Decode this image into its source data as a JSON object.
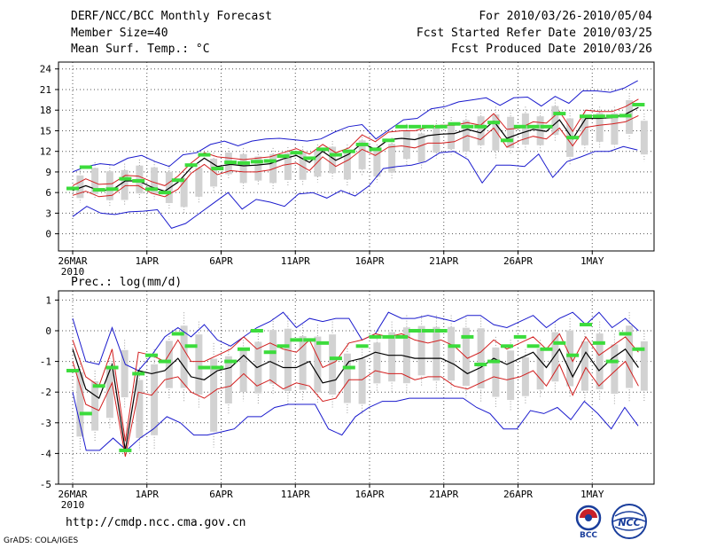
{
  "header": {
    "title": "DERF/NCC/BCC Monthly Forecast",
    "member_size": "Member Size=40",
    "variable": "Mean Surf. Temp.: °C",
    "period": "For 2010/03/26-2010/05/04",
    "refer_date": "Fcst Started Refer Date 2010/03/25",
    "produced_date": "Fcst Produced Date 2010/03/26"
  },
  "footer": {
    "url": "http://cmdp.ncc.cma.gov.cn",
    "credit": "GrADS: COLA/IGES",
    "logo_bcc": "BCC",
    "logo_ncc": "NCC"
  },
  "colors": {
    "max_min": "#1a1acd",
    "spread": "#d21e1e",
    "mean": "#000000",
    "median": "#3cdc3c",
    "boxes": "#d2d2d2",
    "grid": "#555555"
  },
  "chart_data": [
    {
      "type": "box-ensemble",
      "title": "",
      "ylabel": "Mean Surf. Temp.: °C",
      "ylim": [
        -2.5,
        25
      ],
      "yticks": [
        0,
        3,
        6,
        9,
        12,
        15,
        18,
        21,
        24
      ],
      "ytick_labels": [
        "0",
        "3",
        "6",
        "9",
        "12",
        "15",
        "18",
        "21",
        "24"
      ],
      "xticks": [
        0,
        5,
        10,
        15,
        20,
        25,
        30,
        35
      ],
      "xtick_labels": [
        "26MAR",
        "1APR",
        "6APR",
        "11APR",
        "16APR",
        "21APR",
        "26APR",
        "1MAY"
      ],
      "year_label": "2010",
      "days": 40,
      "series": [
        {
          "name": "max",
          "values": [
            9.0,
            9.8,
            10.2,
            10.0,
            11.0,
            11.4,
            10.5,
            9.8,
            11.5,
            11.8,
            13.0,
            13.5,
            12.8,
            13.5,
            13.8,
            13.9,
            13.7,
            13.5,
            13.8,
            14.8,
            15.6,
            15.9,
            13.8,
            15.2,
            16.6,
            16.8,
            18.2,
            18.5,
            19.2,
            19.5,
            19.8,
            18.7,
            19.8,
            19.9,
            18.6,
            20.0,
            19.0,
            20.8,
            20.8,
            20.6,
            21.2,
            22.3,
            20.8
          ]
        },
        {
          "name": "min",
          "values": [
            2.5,
            4.0,
            3.0,
            2.8,
            3.2,
            3.3,
            3.5,
            0.8,
            1.5,
            3.0,
            4.5,
            6.0,
            3.6,
            5.0,
            4.6,
            4.0,
            5.8,
            6.0,
            5.2,
            6.3,
            5.5,
            7.0,
            9.5,
            9.8,
            10.0,
            10.5,
            11.8,
            12.0,
            10.8,
            7.4,
            10.0,
            10.0,
            9.8,
            11.6,
            8.2,
            10.5,
            11.2,
            12.0,
            12.0,
            12.7,
            12.2,
            12.0
          ]
        },
        {
          "name": "upper",
          "values": [
            7.0,
            8.0,
            7.2,
            7.3,
            8.5,
            8.4,
            7.6,
            7.0,
            8.4,
            10.3,
            11.8,
            11.2,
            11.0,
            10.8,
            11.0,
            11.2,
            11.8,
            12.4,
            11.6,
            13.0,
            11.8,
            12.5,
            14.4,
            13.4,
            14.8,
            15.0,
            15.0,
            15.5,
            15.8,
            15.8,
            16.2,
            15.8,
            17.5,
            15.2,
            15.4,
            16.3,
            16.1,
            17.8,
            14.9,
            18.0,
            17.8,
            17.8,
            18.5,
            19.6,
            18.2
          ]
        },
        {
          "name": "lower",
          "values": [
            5.6,
            6.2,
            5.4,
            5.6,
            7.0,
            7.0,
            5.9,
            5.4,
            6.5,
            8.8,
            10.1,
            8.6,
            9.2,
            9.0,
            9.0,
            9.3,
            10.0,
            10.3,
            9.2,
            11.2,
            9.8,
            10.8,
            12.3,
            11.4,
            12.6,
            12.8,
            12.5,
            13.2,
            13.2,
            13.4,
            14.3,
            13.7,
            15.4,
            12.6,
            13.6,
            14.2,
            13.8,
            15.4,
            12.8,
            15.5,
            15.8,
            16.0,
            16.3,
            17.2,
            16.4
          ]
        },
        {
          "name": "mean",
          "values": [
            6.3,
            7.0,
            6.3,
            6.4,
            7.7,
            7.7,
            6.8,
            6.2,
            7.5,
            9.6,
            11.0,
            9.8,
            10.1,
            9.9,
            10.0,
            10.2,
            10.9,
            11.4,
            10.4,
            12.0,
            10.7,
            11.6,
            13.2,
            12.3,
            13.7,
            13.9,
            13.7,
            14.3,
            14.5,
            14.6,
            15.2,
            14.7,
            16.4,
            13.9,
            14.6,
            15.2,
            14.9,
            16.6,
            13.8,
            16.8,
            16.8,
            16.9,
            17.4,
            18.4,
            17.3
          ]
        },
        {
          "name": "median",
          "values": [
            6.6,
            9.7,
            6.4,
            6.5,
            8.0,
            7.7,
            6.5,
            6.0,
            7.8,
            10.0,
            11.5,
            9.5,
            10.4,
            10.3,
            10.5,
            10.6,
            11.3,
            11.8,
            11.0,
            12.3,
            11.5,
            12.0,
            13.0,
            12.3,
            13.6,
            15.6,
            15.6,
            15.6,
            15.6,
            16.0,
            15.6,
            15.6,
            16.2,
            13.6,
            15.6,
            15.6,
            15.6,
            17.5,
            14.0,
            17.1,
            17.1,
            17.1,
            17.2,
            18.8,
            17.6
          ]
        },
        {
          "name": "box_top",
          "values": [
            9.2,
            10.4,
            10.0,
            10.2,
            10.8,
            10.5,
            10.0,
            9.0,
            10.5,
            11.8,
            12.5,
            12.5,
            12.0,
            12.5,
            12.6,
            12.7,
            13.0,
            13.5,
            13.0,
            14.5,
            13.0,
            14.0,
            16.0,
            15.5,
            16.5,
            17.0,
            17.5,
            18.0,
            18.5,
            18.0,
            18.5,
            18.0,
            19.5,
            18.0,
            18.0,
            18.5,
            18.5,
            20.5,
            17.5,
            20.0,
            20.0,
            19.8,
            20.5,
            21.5,
            21.0
          ]
        },
        {
          "name": "box_bottom",
          "values": [
            4.5,
            5.0,
            4.0,
            4.0,
            5.0,
            5.0,
            3.5,
            3.0,
            4.5,
            6.0,
            8.0,
            6.5,
            7.0,
            6.5,
            7.0,
            7.0,
            7.5,
            8.0,
            7.0,
            8.5,
            7.5,
            8.0,
            10.0,
            9.5,
            11.0,
            11.5,
            11.0,
            12.0,
            11.0,
            11.5,
            12.0,
            12.0,
            13.5,
            10.0,
            12.0,
            12.5,
            12.0,
            13.5,
            10.5,
            14.0,
            13.5,
            14.0,
            14.0,
            15.0,
            14.5
          ]
        }
      ]
    },
    {
      "type": "box-ensemble",
      "title": "Prec.: log(mm/d)",
      "ylabel": "Prec.: log(mm/d)",
      "ylim": [
        -5,
        1.3
      ],
      "yticks": [
        -5,
        -4,
        -3,
        -2,
        -1,
        0,
        1
      ],
      "ytick_labels": [
        "-5",
        "-4",
        "-3",
        "-2",
        "-1",
        "0",
        "1"
      ],
      "xticks": [
        0,
        5,
        10,
        15,
        20,
        25,
        30,
        35
      ],
      "xtick_labels": [
        "26MAR",
        "1APR",
        "6APR",
        "11APR",
        "16APR",
        "21APR",
        "26APR",
        "1MAY"
      ],
      "year_label": "2010",
      "days": 40,
      "series": [
        {
          "name": "max",
          "values": [
            0.4,
            -1.0,
            -1.1,
            0.1,
            -1.1,
            -1.3,
            -0.8,
            -0.2,
            0.1,
            -0.2,
            0.2,
            -0.3,
            -0.5,
            -0.2,
            0.1,
            0.3,
            0.6,
            0.1,
            0.4,
            0.3,
            0.4,
            0.4,
            -0.3,
            -0.1,
            0.6,
            0.4,
            0.4,
            0.5,
            0.4,
            0.3,
            0.5,
            0.5,
            0.2,
            0.1,
            0.3,
            0.5,
            0.1,
            0.4,
            0.6,
            0.2,
            0.6,
            0.1,
            0.4,
            0.0,
            0.3
          ]
        },
        {
          "name": "min",
          "values": [
            -2.0,
            -3.9,
            -3.9,
            -3.5,
            -3.9,
            -3.5,
            -3.2,
            -2.8,
            -3.0,
            -3.4,
            -3.4,
            -3.3,
            -3.2,
            -2.8,
            -2.8,
            -2.5,
            -2.4,
            -2.4,
            -2.4,
            -3.2,
            -3.4,
            -2.8,
            -2.5,
            -2.3,
            -2.3,
            -2.2,
            -2.2,
            -2.2,
            -2.2,
            -2.2,
            -2.5,
            -2.7,
            -3.2,
            -3.2,
            -2.6,
            -2.7,
            -2.5,
            -2.9,
            -2.3,
            -2.7,
            -3.2,
            -2.5,
            -3.1,
            -2.5
          ]
        },
        {
          "name": "upper",
          "values": [
            -0.3,
            -1.5,
            -1.8,
            -0.6,
            -3.6,
            -0.7,
            -0.8,
            -1.0,
            -0.3,
            -1.0,
            -1.0,
            -0.8,
            -0.6,
            -0.2,
            -0.6,
            -0.4,
            -0.6,
            -0.7,
            -0.3,
            -1.2,
            -1.0,
            -0.4,
            -0.3,
            -0.1,
            -0.2,
            -0.1,
            -0.3,
            -0.4,
            -0.3,
            -0.5,
            -0.9,
            -0.7,
            -0.3,
            -0.6,
            -0.4,
            -0.2,
            -0.6,
            -0.1,
            -1.0,
            -0.2,
            -0.8,
            -0.5,
            -0.2,
            -0.7,
            -0.3
          ]
        },
        {
          "name": "lower",
          "values": [
            -1.0,
            -2.4,
            -2.6,
            -1.7,
            -4.1,
            -2.0,
            -2.1,
            -1.6,
            -1.5,
            -2.0,
            -2.2,
            -1.9,
            -1.8,
            -1.4,
            -1.8,
            -1.6,
            -1.9,
            -1.7,
            -1.8,
            -2.3,
            -2.2,
            -1.6,
            -1.6,
            -1.3,
            -1.4,
            -1.4,
            -1.6,
            -1.5,
            -1.5,
            -1.8,
            -1.9,
            -1.7,
            -1.5,
            -1.6,
            -1.5,
            -1.3,
            -1.8,
            -1.1,
            -2.1,
            -1.2,
            -1.8,
            -1.4,
            -1.0,
            -1.8,
            -1.3
          ]
        },
        {
          "name": "mean",
          "values": [
            -0.6,
            -1.9,
            -2.2,
            -1.1,
            -3.9,
            -1.3,
            -1.4,
            -1.3,
            -0.9,
            -1.5,
            -1.6,
            -1.3,
            -1.2,
            -0.8,
            -1.2,
            -1.0,
            -1.2,
            -1.2,
            -1.0,
            -1.7,
            -1.6,
            -1.0,
            -0.9,
            -0.7,
            -0.8,
            -0.8,
            -0.9,
            -0.9,
            -0.9,
            -1.1,
            -1.4,
            -1.2,
            -0.9,
            -1.1,
            -0.9,
            -0.7,
            -1.2,
            -0.6,
            -1.5,
            -0.7,
            -1.3,
            -0.9,
            -0.6,
            -1.2,
            -0.8
          ]
        },
        {
          "name": "median",
          "values": [
            -1.3,
            -2.7,
            -1.8,
            -1.2,
            -3.9,
            -1.4,
            -0.8,
            -1.0,
            -0.1,
            -0.5,
            -1.2,
            -1.2,
            -1.0,
            -0.6,
            -0.0,
            -0.7,
            -0.5,
            -0.3,
            -0.3,
            -0.4,
            -0.9,
            -1.2,
            -0.5,
            -0.2,
            -0.2,
            -0.2,
            -0.0,
            -0.0,
            -0.0,
            -0.5,
            -0.2,
            -1.1,
            -1.0,
            -0.5,
            -0.2,
            -0.5,
            -0.6,
            -0.4,
            -0.8,
            0.2,
            -0.4,
            -1.0,
            -0.1,
            -0.6,
            -0.2
          ]
        },
        {
          "name": "box_top",
          "values": [
            -0.9,
            -1.3,
            -0.8,
            -0.3,
            -1.2,
            -0.6,
            0.0,
            0.6,
            0.3,
            -0.4,
            -0.5,
            -0.3,
            0.0,
            0.4,
            0.5,
            0.2,
            0.2,
            0.3,
            -0.4,
            -0.6,
            -0.1,
            0.3,
            0.5,
            0.5,
            0.5,
            0.5,
            0.5,
            0.5,
            -0.2,
            -0.3,
            -0.6,
            -0.3,
            0.3,
            0.4,
            0.0,
            0.3,
            -0.1,
            0.6,
            0.0,
            0.4,
            -0.3,
            -0.2,
            -0.2
          ]
        },
        {
          "name": "box_bottom",
          "values": [
            -3.9,
            -3.6,
            -3.2,
            -2.5,
            -3.9,
            -3.9,
            -2.2,
            -2.3,
            -2.5,
            -3.8,
            -2.7,
            -2.3,
            -2.4,
            -2.1,
            -2.4,
            -2.3,
            -2.4,
            -2.5,
            -2.7,
            -2.7,
            -2.0,
            -2.0,
            -2.1,
            -1.8,
            -2.0,
            -2.0,
            -2.2,
            -2.3,
            -2.5,
            -2.6,
            -2.4,
            -2.2,
            -2.0,
            -2.2,
            -2.3,
            -2.3,
            -2.4,
            -2.3,
            -2.3,
            -2.5,
            -2.0,
            -2.1,
            -2.0
          ]
        }
      ]
    }
  ]
}
